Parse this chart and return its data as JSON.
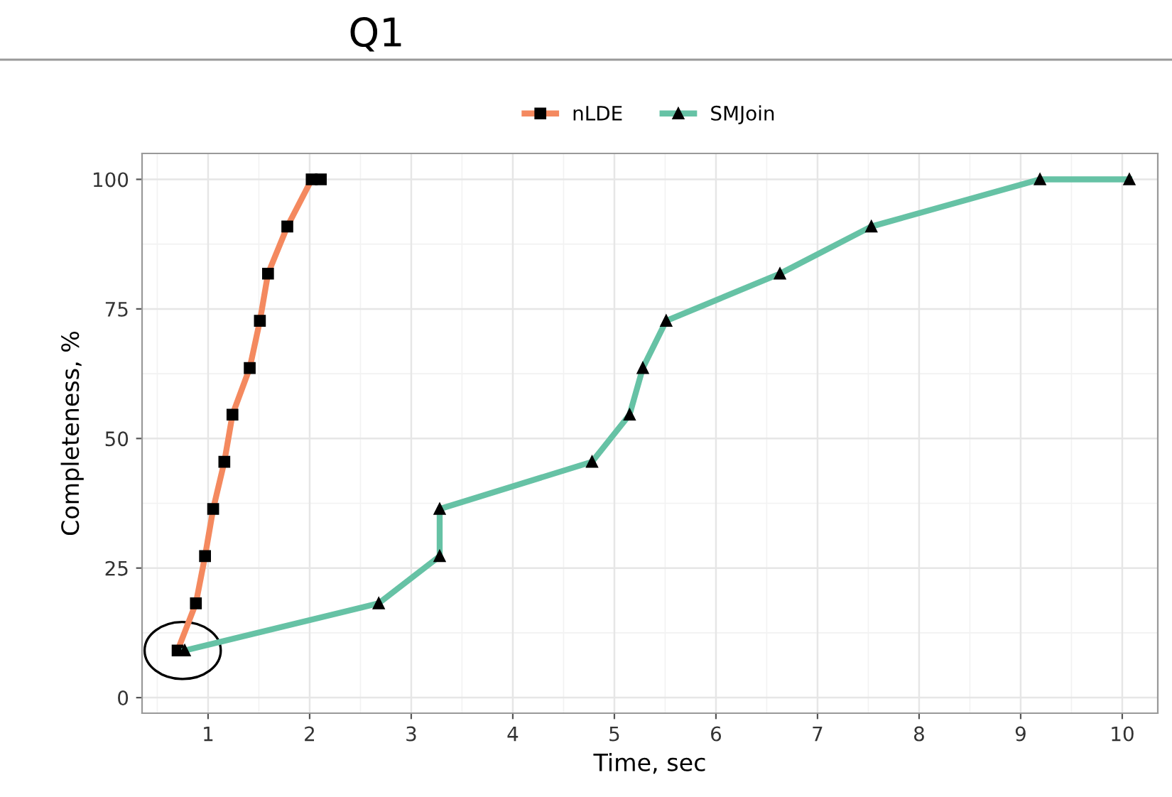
{
  "chart_data": {
    "type": "line",
    "title": "Q1",
    "xlabel": "Time, sec",
    "ylabel": "Completeness, %",
    "xlim": [
      0.35,
      10.35
    ],
    "xticks": [
      1,
      2,
      3,
      4,
      5,
      6,
      7,
      8,
      9,
      10
    ],
    "ylim": [
      -3,
      105
    ],
    "yticks": [
      0,
      25,
      50,
      75,
      100
    ],
    "grid": true,
    "legend": "top",
    "line_style": "solid",
    "series": [
      {
        "name": "nLDE",
        "color": "#f4895f",
        "marker": "square",
        "x": [
          0.7,
          0.88,
          0.97,
          1.05,
          1.16,
          1.24,
          1.41,
          1.51,
          1.59,
          1.78,
          2.02,
          2.11
        ],
        "values": [
          9.1,
          18.2,
          27.3,
          36.4,
          45.5,
          54.6,
          63.6,
          72.7,
          81.8,
          90.9,
          100,
          100
        ]
      },
      {
        "name": "SMJoin",
        "color": "#66c2a5",
        "marker": "triangle",
        "x": [
          0.77,
          2.68,
          3.28,
          3.28,
          4.78,
          5.15,
          5.28,
          5.51,
          6.63,
          7.53,
          9.19,
          10.07
        ],
        "values": [
          9.1,
          18.2,
          27.3,
          36.4,
          45.5,
          54.6,
          63.6,
          72.7,
          81.8,
          90.9,
          100,
          100
        ]
      }
    ]
  }
}
